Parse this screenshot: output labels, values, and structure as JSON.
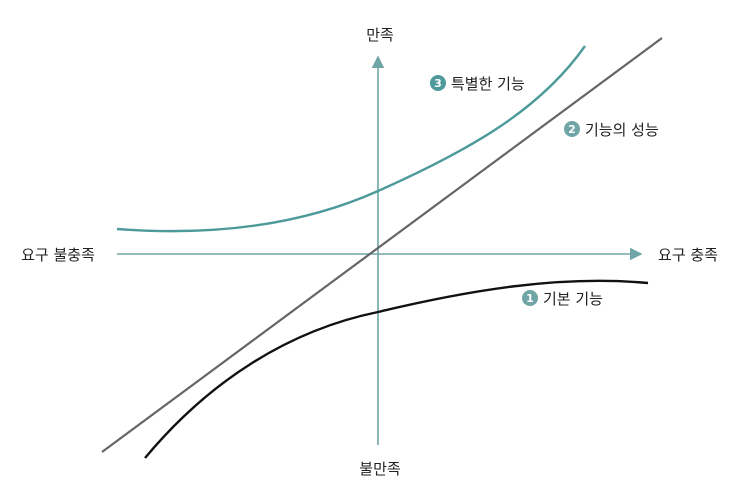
{
  "axes": {
    "y_top": "만족",
    "y_bottom": "불만족",
    "x_left": "요구 불충족",
    "x_right": "요구 충족"
  },
  "curves": {
    "attractive": {
      "number": "3",
      "label": "특별한 기능",
      "color": "#4e9a9b"
    },
    "performance": {
      "number": "2",
      "label": "기능의 성능",
      "color": "#666666"
    },
    "basic": {
      "number": "1",
      "label": "기본 기능",
      "color": "#111111"
    }
  },
  "colors": {
    "axis": "#6fa5a6"
  }
}
